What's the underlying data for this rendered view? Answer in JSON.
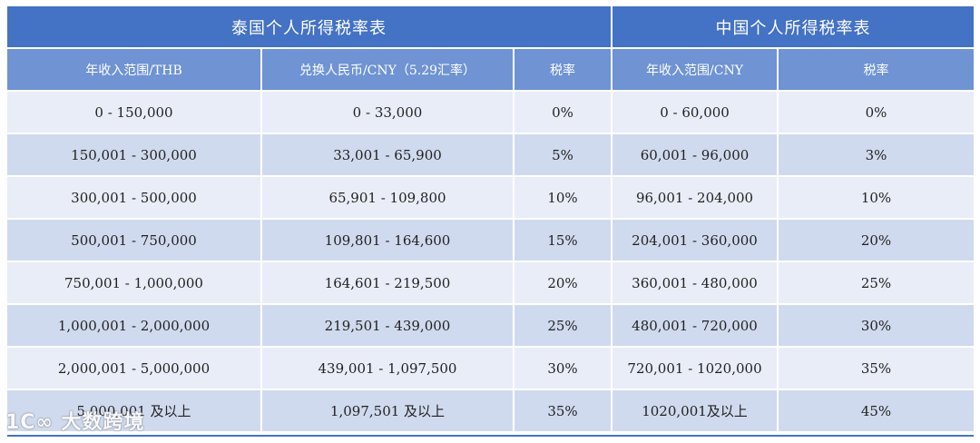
{
  "titles": {
    "thailand": "泰国个人所得税率表",
    "china": "中国个人所得税率表"
  },
  "headers": {
    "th_income": "年收入范围/THB",
    "th_cny": "兑换人民币/CNY（5.29汇率）",
    "th_rate": "税率",
    "cn_income": "年收入范围/CNY",
    "cn_rate": "税率"
  },
  "rows": [
    {
      "th_income": "0 - 150,000",
      "th_cny": "0 - 33,000",
      "th_rate": "0%",
      "cn_income": "0 - 60,000",
      "cn_rate": "0%"
    },
    {
      "th_income": "150,001 - 300,000",
      "th_cny": "33,001 - 65,900",
      "th_rate": "5%",
      "cn_income": "60,001 - 96,000",
      "cn_rate": "3%"
    },
    {
      "th_income": "300,001 - 500,000",
      "th_cny": "65,901 - 109,800",
      "th_rate": "10%",
      "cn_income": "96,001 - 204,000",
      "cn_rate": "10%"
    },
    {
      "th_income": "500,001 - 750,000",
      "th_cny": "109,801 - 164,600",
      "th_rate": "15%",
      "cn_income": "204,001 - 360,000",
      "cn_rate": "20%"
    },
    {
      "th_income": "750,001 - 1,000,000",
      "th_cny": "164,601 - 219,500",
      "th_rate": "20%",
      "cn_income": "360,001 - 480,000",
      "cn_rate": "25%"
    },
    {
      "th_income": "1,000,001 - 2,000,000",
      "th_cny": "219,501 - 439,000",
      "th_rate": "25%",
      "cn_income": "480,001 - 720,000",
      "cn_rate": "30%"
    },
    {
      "th_income": "2,000,001 - 5,000,000",
      "th_cny": "439,001 - 1,097,500",
      "th_rate": "30%",
      "cn_income": "720,001 - 1020,000",
      "cn_rate": "35%"
    },
    {
      "th_income": "5,000,001 及以上",
      "th_cny": "1,097,501 及以上",
      "th_rate": "35%",
      "cn_income": "1020,001及以上",
      "cn_rate": "45%"
    }
  ],
  "watermark": "1C∞ 大数跨境",
  "colors": {
    "title_bg": "#4472c4",
    "header_bg": "#6f93d3",
    "row_light": "#e9edf7",
    "row_dark": "#d0daee"
  }
}
